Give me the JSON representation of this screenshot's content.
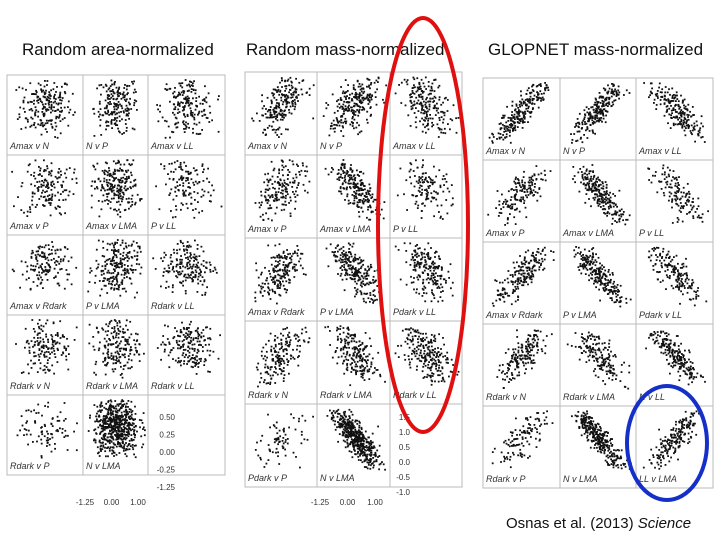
{
  "panel_titles": [
    "Random area-normalized",
    "Random mass-normalized",
    "GLOPNET mass-normalized"
  ],
  "citation": {
    "authors": "Osnas et al. (2013)",
    "journal": "Science"
  },
  "axis_ticks": {
    "left_y": [
      "0.50",
      "0.25",
      "0.00",
      "-0.25",
      "-1.25"
    ],
    "left_x": [
      "-1.25",
      "0.00",
      "1.00"
    ],
    "middle_y": [
      "1.5",
      "1.0",
      "0.5",
      "0.0",
      "-0.5",
      "-1.0"
    ],
    "middle_x": [
      "-1.25",
      "0.00",
      "1.00"
    ]
  },
  "annotation_colors": {
    "red_ellipse": "#e01010",
    "blue_ellipse": "#1530c8"
  },
  "chart_data": [
    {
      "type": "scatter",
      "title": "Random area-normalized",
      "panels": [
        {
          "label": "Amax v N",
          "corr": 0.0,
          "n": 220
        },
        {
          "label": "N v P",
          "corr": 0.05,
          "n": 220
        },
        {
          "label": "Amax v LL",
          "corr": 0.0,
          "n": 200
        },
        {
          "label": "Amax v P",
          "corr": 0.05,
          "n": 160
        },
        {
          "label": "Amax v LMA",
          "corr": 0.05,
          "n": 240
        },
        {
          "label": "P v LL",
          "corr": -0.1,
          "n": 140
        },
        {
          "label": "Amax v Rdark",
          "corr": 0.1,
          "n": 160
        },
        {
          "label": "P v LMA",
          "corr": 0.05,
          "n": 240
        },
        {
          "label": "Rdark v LL",
          "corr": 0.0,
          "n": 200
        },
        {
          "label": "Rdark v N",
          "corr": 0.1,
          "n": 160
        },
        {
          "label": "Rdark v LMA",
          "corr": 0.05,
          "n": 200
        },
        {
          "label": "Rdark v LL",
          "corr": 0.0,
          "n": 200
        },
        {
          "label": "Rdark v P",
          "corr": 0.05,
          "n": 90
        },
        {
          "label": "N v LMA",
          "corr": 0.0,
          "n": 600
        }
      ]
    },
    {
      "type": "scatter",
      "title": "Random mass-normalized",
      "panels": [
        {
          "label": "Amax v N",
          "corr": 0.6,
          "n": 240
        },
        {
          "label": "N v P",
          "corr": 0.55,
          "n": 260
        },
        {
          "label": "Amax v LL",
          "corr": -0.5,
          "n": 220
        },
        {
          "label": "Amax v P",
          "corr": 0.5,
          "n": 180
        },
        {
          "label": "Amax v LMA",
          "corr": -0.75,
          "n": 240
        },
        {
          "label": "P v LL",
          "corr": -0.45,
          "n": 140
        },
        {
          "label": "Amax v Rdark",
          "corr": 0.6,
          "n": 200
        },
        {
          "label": "P v LMA",
          "corr": -0.75,
          "n": 260
        },
        {
          "label": "Pdark v LL",
          "corr": -0.45,
          "n": 220
        },
        {
          "label": "Rdark v N",
          "corr": 0.55,
          "n": 180
        },
        {
          "label": "Rdark v LMA",
          "corr": -0.65,
          "n": 220
        },
        {
          "label": "Rdark v LL",
          "corr": -0.45,
          "n": 240
        },
        {
          "label": "Pdark v P",
          "corr": 0.4,
          "n": 90
        },
        {
          "label": "N v LMA",
          "corr": -0.85,
          "n": 500
        }
      ]
    },
    {
      "type": "scatter",
      "title": "GLOPNET mass-normalized",
      "panels": [
        {
          "label": "Amax v N",
          "corr": 0.85,
          "n": 240
        },
        {
          "label": "N v P",
          "corr": 0.85,
          "n": 240
        },
        {
          "label": "Amax v LL",
          "corr": -0.8,
          "n": 220
        },
        {
          "label": "Amax v P",
          "corr": 0.7,
          "n": 160
        },
        {
          "label": "Amax v LMA",
          "corr": -0.85,
          "n": 240
        },
        {
          "label": "P v LL",
          "corr": -0.7,
          "n": 140
        },
        {
          "label": "Amax v Rdark",
          "corr": 0.8,
          "n": 200
        },
        {
          "label": "P v LMA",
          "corr": -0.85,
          "n": 240
        },
        {
          "label": "Pdark v LL",
          "corr": -0.8,
          "n": 180
        },
        {
          "label": "Rdark v N",
          "corr": 0.8,
          "n": 180
        },
        {
          "label": "Rdark v LMA",
          "corr": -0.8,
          "n": 180
        },
        {
          "label": "N v LL",
          "corr": -0.85,
          "n": 220
        },
        {
          "label": "Rdark v P",
          "corr": 0.75,
          "n": 120
        },
        {
          "label": "N v LMA",
          "corr": -0.9,
          "n": 320
        },
        {
          "label": "LL v LMA",
          "corr": 0.85,
          "n": 200
        }
      ]
    }
  ]
}
